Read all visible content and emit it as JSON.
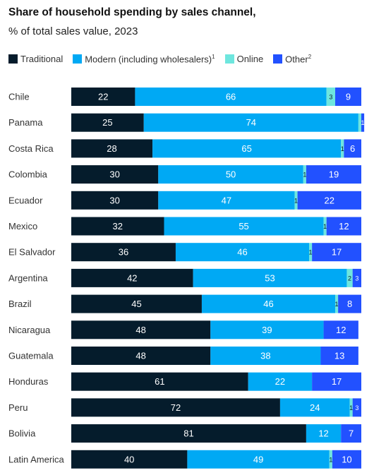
{
  "chart_data": {
    "type": "bar",
    "orientation": "horizontal",
    "stacked": true,
    "title": "Share of household spending by sales channel,",
    "subtitle": "% of total sales value, 2023",
    "legend_position": "top",
    "grid": false,
    "xlim": [
      0,
      100
    ],
    "categories": [
      "Chile",
      "Panama",
      "Costa Rica",
      "Colombia",
      "Ecuador",
      "Mexico",
      "El Salvador",
      "Argentina",
      "Brazil",
      "Nicaragua",
      "Guatemala",
      "Honduras",
      "Peru",
      "Bolivia",
      "Latin America"
    ],
    "series": [
      {
        "name": "Traditional",
        "sup": "",
        "color": "#051c2c",
        "values": [
          22,
          25,
          28,
          30,
          30,
          32,
          36,
          42,
          45,
          48,
          48,
          61,
          72,
          81,
          40
        ]
      },
      {
        "name": "Modern (including wholesalers)",
        "sup": "1",
        "color": "#00a9f4",
        "values": [
          66,
          74,
          65,
          50,
          47,
          55,
          46,
          53,
          46,
          39,
          38,
          22,
          24,
          12,
          49
        ]
      },
      {
        "name": "Online",
        "sup": "",
        "color": "#6ee6de",
        "values": [
          3,
          1,
          1,
          1,
          1,
          1,
          1,
          2,
          1,
          0,
          0,
          0,
          1,
          0,
          1
        ]
      },
      {
        "name": "Other",
        "sup": "2",
        "color": "#2251ff",
        "values": [
          9,
          1,
          6,
          19,
          22,
          12,
          17,
          3,
          8,
          12,
          13,
          17,
          3,
          7,
          10
        ]
      }
    ],
    "labels": [
      [
        "22",
        "66",
        "3",
        "9"
      ],
      [
        "25",
        "74",
        "",
        "1"
      ],
      [
        "28",
        "65",
        "1",
        "6"
      ],
      [
        "30",
        "50",
        "1",
        "19"
      ],
      [
        "30",
        "47",
        "1",
        "22"
      ],
      [
        "32",
        "55",
        "1",
        "12"
      ],
      [
        "36",
        "46",
        "1",
        "17"
      ],
      [
        "42",
        "53",
        "2",
        "3"
      ],
      [
        "45",
        "46",
        "1",
        "8"
      ],
      [
        "48",
        "39",
        "",
        "12"
      ],
      [
        "48",
        "38",
        "",
        "13"
      ],
      [
        "61",
        "22",
        "",
        "17"
      ],
      [
        "72",
        "24",
        "1",
        "3"
      ],
      [
        "81",
        "12",
        "",
        "7"
      ],
      [
        "40",
        "49",
        "1",
        "10"
      ]
    ]
  }
}
